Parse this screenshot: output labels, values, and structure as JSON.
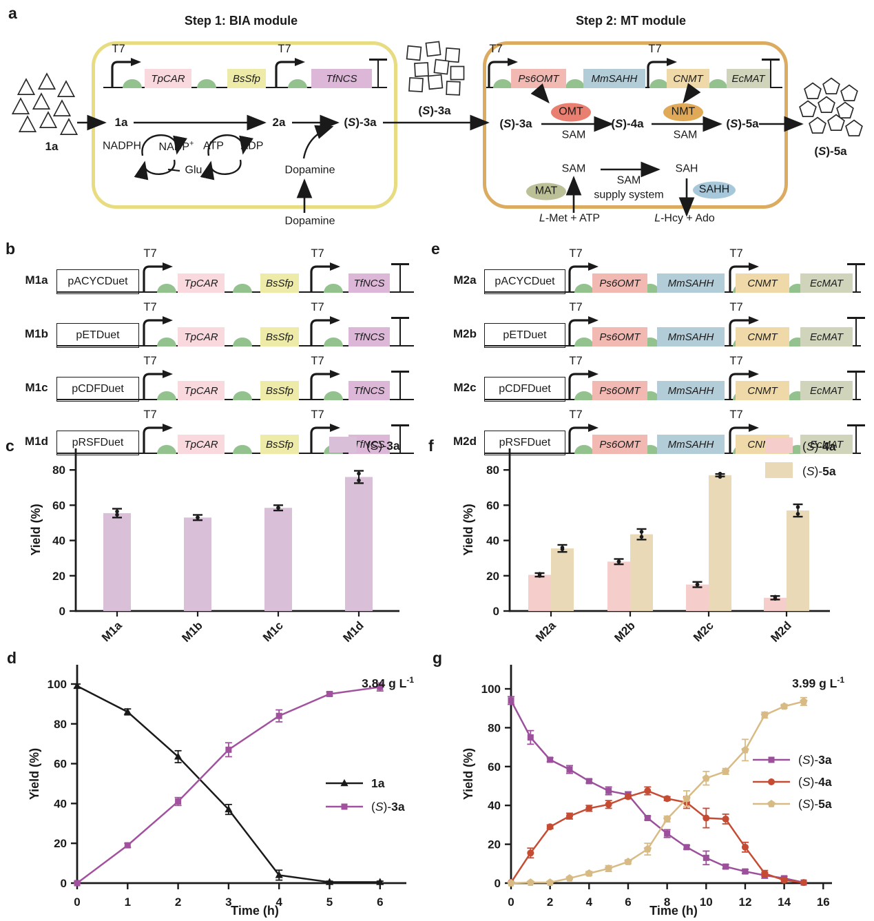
{
  "figure": {
    "background": "#ffffff",
    "panels": {
      "a": "a",
      "b": "b",
      "c": "c",
      "d": "d",
      "e": "e",
      "f": "f",
      "g": "g"
    },
    "colors": {
      "text": "#1a1a1a",
      "module1_border": "#e7dc82",
      "module2_border": "#dcab62",
      "rbs": "#93c28f",
      "genes": {
        "TpCAR": "#f9d9de",
        "BsSfp": "#eeeba9",
        "TfNCS": "#dcb7d8",
        "Ps6OMT": "#f2b9b2",
        "MmSAHH": "#b3cdd8",
        "CNMT": "#f0d9a8",
        "EcMAT": "#cfd4ba"
      },
      "enzymes": {
        "OMT": "#e97f70",
        "NMT": "#e0a958",
        "MAT": "#bcc096",
        "SAHH": "#a6c8da"
      }
    },
    "panel_a": {
      "t7": "T7",
      "step1": {
        "title": "Step 1: BIA module",
        "genes": [
          "TpCAR",
          "BsSfp",
          "TfNCS"
        ],
        "compounds": [
          "1a",
          "2a",
          "(S)-3a"
        ],
        "cofactors": [
          "NADPH",
          "NADP+",
          "ATP",
          "ADP"
        ],
        "glu": "Glu",
        "dopamine_internal": "Dopamine",
        "dopamine_external": "Dopamine"
      },
      "step2": {
        "title": "Step 2: MT module",
        "genes": [
          "Ps6OMT",
          "MmSAHH",
          "CNMT",
          "EcMAT"
        ],
        "compounds": [
          "(S)-3a",
          "(S)-4a",
          "(S)-5a"
        ],
        "sam_under_arrows": [
          "SAM",
          "SAM"
        ],
        "enzymes": [
          "OMT",
          "NMT"
        ],
        "supply": {
          "mat": "MAT",
          "sahh": "SAHH",
          "sam": "SAM",
          "sah": "SAH",
          "system_line1": "SAM",
          "system_line2": "supply system",
          "input": "L-Met + ATP",
          "output": "L-Hcy + Ado"
        }
      },
      "substrate_label": "1a",
      "intermediate_label": "(S)-3a",
      "product_label": "(S)-5a"
    },
    "panel_b": {
      "t7": "T7",
      "genes": [
        "TpCAR",
        "BsSfp",
        "TfNCS"
      ],
      "rows": [
        {
          "label": "M1a",
          "plasmid": "pACYCDuet"
        },
        {
          "label": "M1b",
          "plasmid": "pETDuet"
        },
        {
          "label": "M1c",
          "plasmid": "pCDFDuet"
        },
        {
          "label": "M1d",
          "plasmid": "pRSFDuet"
        }
      ]
    },
    "panel_e": {
      "t7": "T7",
      "genes": [
        "Ps6OMT",
        "MmSAHH",
        "CNMT",
        "EcMAT"
      ],
      "rows": [
        {
          "label": "M2a",
          "plasmid": "pACYCDuet"
        },
        {
          "label": "M2b",
          "plasmid": "pETDuet"
        },
        {
          "label": "M2c",
          "plasmid": "pCDFDuet"
        },
        {
          "label": "M2d",
          "plasmid": "pRSFDuet"
        }
      ]
    },
    "chart_data": [
      {
        "id": "panel_c",
        "type": "bar",
        "ylabel": "Yield (%)",
        "ylim": [
          0,
          90
        ],
        "yticks": [
          0,
          20,
          40,
          60,
          80
        ],
        "categories": [
          "M1a",
          "M1b",
          "M1c",
          "M1d"
        ],
        "series": [
          {
            "name": "(S)-3a",
            "color": "#dabfd8",
            "values": [
              55.5,
              53,
              58.5,
              76
            ],
            "errors": [
              2.5,
              1.5,
              1.5,
              3.5
            ]
          }
        ],
        "legend_position": "top-right",
        "grid": false
      },
      {
        "id": "panel_f",
        "type": "bar",
        "ylabel": "Yield (%)",
        "ylim": [
          0,
          90
        ],
        "yticks": [
          0,
          20,
          40,
          60,
          80
        ],
        "categories": [
          "M2a",
          "M2b",
          "M2c",
          "M2d"
        ],
        "series": [
          {
            "name": "(S)-4a",
            "color": "#f5cdca",
            "values": [
              20.5,
              28,
              15,
              7.5
            ],
            "errors": [
              1,
              1.5,
              1.5,
              1
            ]
          },
          {
            "name": "(S)-5a",
            "color": "#e9d9b6",
            "values": [
              35.5,
              43.5,
              77,
              57
            ],
            "errors": [
              2,
              3,
              0.7,
              3.5
            ]
          }
        ],
        "legend_position": "top-right",
        "grid": false
      },
      {
        "id": "panel_d",
        "type": "line",
        "xlabel": "Time (h)",
        "ylabel": "Yield (%)",
        "xlim": [
          0,
          6.5
        ],
        "ylim": [
          0,
          110
        ],
        "xticks": [
          0,
          1,
          2,
          3,
          4,
          5,
          6
        ],
        "yticks": [
          0,
          20,
          40,
          60,
          80,
          100
        ],
        "annotation": "3.84 g L^-1",
        "x": [
          0,
          1,
          2,
          3,
          4,
          5,
          6
        ],
        "series": [
          {
            "name": "1a",
            "color": "#1a1a1a",
            "marker": "triangle",
            "values": [
              99,
              86,
              63.5,
              37,
              4,
              0.5,
              0.5
            ],
            "errors": [
              1,
              1.5,
              3,
              2.5,
              2.5,
              0.5,
              0.5
            ]
          },
          {
            "name": "(S)-3a",
            "color": "#a2519e",
            "marker": "square",
            "values": [
              0,
              19,
              41,
              67,
              84,
              95,
              98.5
            ],
            "errors": [
              0.5,
              1,
              2,
              3.5,
              3,
              1,
              2
            ]
          }
        ],
        "legend_position": "right-middle",
        "grid": false
      },
      {
        "id": "panel_g",
        "type": "line",
        "xlabel": "Time (h)",
        "ylabel": "Yield (%)",
        "xlim": [
          0,
          16.5
        ],
        "ylim": [
          0,
          110
        ],
        "xticks": [
          0,
          2,
          4,
          6,
          8,
          10,
          12,
          14,
          16
        ],
        "yticks": [
          0,
          20,
          40,
          60,
          80,
          100
        ],
        "annotation": "3.99 g L^-1",
        "x": [
          0,
          1,
          2,
          3,
          4,
          5,
          6,
          7,
          8,
          9,
          10,
          11,
          12,
          13,
          14,
          15
        ],
        "series": [
          {
            "name": "(S)-3a",
            "color": "#9c4f9b",
            "marker": "square",
            "values": [
              94,
              75,
              63.5,
              58.5,
              52.5,
              47.5,
              45.5,
              33.5,
              25.5,
              18.5,
              13,
              8.5,
              6,
              4,
              2.5,
              0.3
            ],
            "errors": [
              2,
              3.5,
              1,
              2,
              1,
              2,
              1.5,
              1,
              2,
              1,
              3.5,
              1,
              1,
              1.5,
              1,
              0.3
            ]
          },
          {
            "name": "(S)-4a",
            "color": "#c64b33",
            "marker": "circle",
            "values": [
              0.3,
              15.5,
              29,
              34.5,
              38.5,
              40.5,
              44.5,
              47.5,
              43.5,
              41.5,
              33.5,
              33,
              18.5,
              5,
              1.5,
              0.3
            ],
            "errors": [
              0,
              2.5,
              1,
              1.5,
              1.5,
              2,
              1,
              2,
              1,
              3,
              5,
              2.5,
              2.5,
              1.5,
              1,
              0.3
            ]
          },
          {
            "name": "(S)-5a",
            "color": "#d8bb84",
            "marker": "pentagon",
            "values": [
              0,
              0.3,
              0.3,
              2.5,
              5,
              7.5,
              11,
              17.5,
              33,
              43.5,
              54,
              57.5,
              68.5,
              86.5,
              91,
              93.5
            ],
            "errors": [
              0,
              0.3,
              0.3,
              0.5,
              1,
              1.5,
              1,
              3,
              1.5,
              4,
              3.5,
              1.5,
              5.5,
              1.5,
              1,
              2
            ]
          }
        ],
        "legend_position": "right-middle",
        "grid": false
      }
    ]
  }
}
